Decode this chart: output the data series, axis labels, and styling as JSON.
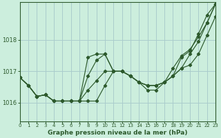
{
  "title": "Graphe pression niveau de la mer (hPa)",
  "background_color": "#cceedd",
  "grid_color": "#aacccc",
  "line_color": "#2d5a2d",
  "x_min": 0,
  "x_max": 23,
  "y_min": 1015.4,
  "y_max": 1019.2,
  "yticks": [
    1016,
    1017,
    1018
  ],
  "xticks": [
    0,
    1,
    2,
    3,
    4,
    5,
    6,
    7,
    8,
    9,
    10,
    11,
    12,
    13,
    14,
    15,
    16,
    17,
    18,
    19,
    20,
    21,
    22,
    23
  ],
  "series": [
    [
      1016.8,
      1016.55,
      1016.2,
      1016.25,
      1016.05,
      1016.05,
      1016.05,
      1016.05,
      1016.05,
      1016.05,
      1016.55,
      1017.0,
      1017.0,
      1016.85,
      1016.65,
      1016.55,
      1016.55,
      1016.65,
      1016.85,
      1017.1,
      1017.2,
      1017.55,
      1018.15,
      1018.75
    ],
    [
      1016.8,
      1016.55,
      1016.2,
      1016.25,
      1016.05,
      1016.05,
      1016.05,
      1016.05,
      1016.85,
      1017.35,
      1017.55,
      1017.0,
      1017.0,
      1016.85,
      1016.65,
      1016.55,
      1016.55,
      1016.65,
      1016.85,
      1017.45,
      1017.65,
      1018.2,
      1018.8,
      1019.15
    ],
    [
      1016.8,
      1016.55,
      1016.2,
      1016.25,
      1016.05,
      1016.05,
      1016.05,
      1016.05,
      1016.4,
      1016.7,
      1017.0,
      1017.0,
      1017.0,
      1016.85,
      1016.65,
      1016.55,
      1016.55,
      1016.65,
      1016.85,
      1017.1,
      1017.55,
      1017.95,
      1018.55,
      1019.15
    ],
    [
      1016.8,
      1016.55,
      1016.2,
      1016.25,
      1016.05,
      1016.05,
      1016.05,
      1016.05,
      1017.45,
      1017.55,
      1017.55,
      1017.0,
      1017.0,
      1016.85,
      1016.65,
      1016.4,
      1016.4,
      1016.65,
      1017.1,
      1017.5,
      1017.7,
      1018.1,
      1018.55,
      1019.15
    ]
  ]
}
